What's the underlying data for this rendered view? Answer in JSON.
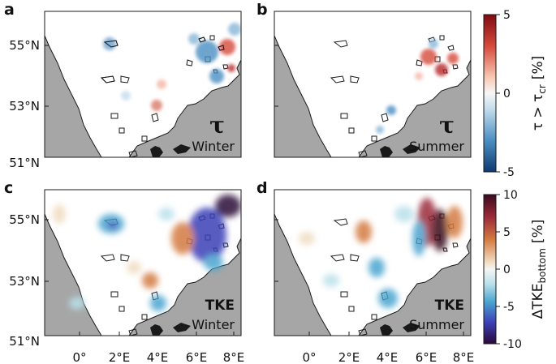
{
  "panels": [
    {
      "id": "a",
      "letter": "a",
      "symbol": "τ",
      "season": "Winter",
      "row": 0,
      "col": 0
    },
    {
      "id": "b",
      "letter": "b",
      "symbol": "τ",
      "season": "Summer",
      "row": 0,
      "col": 1
    },
    {
      "id": "c",
      "letter": "c",
      "symbol": "TKE",
      "season": "Winter",
      "row": 1,
      "col": 0
    },
    {
      "id": "d",
      "letter": "d",
      "symbol": "TKE",
      "season": "Summer",
      "row": 1,
      "col": 1
    }
  ],
  "y_ticks": [
    "55°N",
    "53°N",
    "51°N"
  ],
  "x_ticks": [
    "0°",
    "2°E",
    "4°E",
    "6°E",
    "8°E"
  ],
  "colorbars": [
    {
      "id": "tau",
      "ticks": [
        "5",
        "0",
        "-5"
      ],
      "label_main": "τ > τ",
      "label_sub": "cr",
      "label_unit": "[%]",
      "range": [
        -5,
        5
      ]
    },
    {
      "id": "tke",
      "ticks": [
        "10",
        "5",
        "0",
        "-5",
        "-10"
      ],
      "label_main": "ΔTKE",
      "label_sub": "bottom",
      "label_unit": "[%]",
      "range": [
        -10,
        10
      ]
    }
  ],
  "colors": {
    "land": "#a6a6a6",
    "sea": "#ffffff",
    "outline": "#1a1a1a"
  }
}
